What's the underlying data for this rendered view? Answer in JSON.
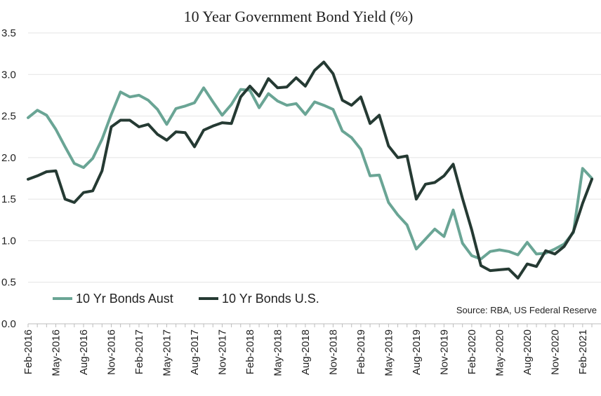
{
  "chart_data": {
    "type": "line",
    "title": "10 Year Government Bond Yield (%)",
    "xlabel": "",
    "ylabel": "",
    "ylim": [
      0,
      3.5
    ],
    "y_ticks": [
      "0.0",
      "0.5",
      "1.0",
      "1.5",
      "2.0",
      "2.5",
      "3.0",
      "3.5"
    ],
    "x_tick_labels": [
      "Feb-2016",
      "May-2016",
      "Aug-2016",
      "Nov-2016",
      "Feb-2017",
      "May-2017",
      "Aug-2017",
      "Nov-2017",
      "Feb-2018",
      "May-2018",
      "Aug-2018",
      "Nov-2018",
      "Feb-2019",
      "May-2019",
      "Aug-2019",
      "Nov-2019",
      "Feb-2020",
      "May-2020",
      "Aug-2020",
      "Nov-2020",
      "Feb-2021"
    ],
    "x": [
      "Feb-2016",
      "Mar-2016",
      "Apr-2016",
      "May-2016",
      "Jun-2016",
      "Jul-2016",
      "Aug-2016",
      "Sep-2016",
      "Oct-2016",
      "Nov-2016",
      "Dec-2016",
      "Jan-2017",
      "Feb-2017",
      "Mar-2017",
      "Apr-2017",
      "May-2017",
      "Jun-2017",
      "Jul-2017",
      "Aug-2017",
      "Sep-2017",
      "Oct-2017",
      "Nov-2017",
      "Dec-2017",
      "Jan-2018",
      "Feb-2018",
      "Mar-2018",
      "Apr-2018",
      "May-2018",
      "Jun-2018",
      "Jul-2018",
      "Aug-2018",
      "Sep-2018",
      "Oct-2018",
      "Nov-2018",
      "Dec-2018",
      "Jan-2019",
      "Feb-2019",
      "Mar-2019",
      "Apr-2019",
      "May-2019",
      "Jun-2019",
      "Jul-2019",
      "Aug-2019",
      "Sep-2019",
      "Oct-2019",
      "Nov-2019",
      "Dec-2019",
      "Jan-2020",
      "Feb-2020",
      "Mar-2020",
      "Apr-2020",
      "May-2020",
      "Jun-2020",
      "Jul-2020",
      "Aug-2020",
      "Sep-2020",
      "Oct-2020",
      "Nov-2020",
      "Dec-2020",
      "Jan-2021",
      "Feb-2021",
      "Mar-2021"
    ],
    "series": [
      {
        "name": "10 Yr Bonds Aust",
        "color": "#6aa595",
        "values": [
          2.48,
          2.57,
          2.51,
          2.34,
          2.13,
          1.93,
          1.88,
          1.99,
          2.22,
          2.52,
          2.79,
          2.73,
          2.75,
          2.69,
          2.58,
          2.4,
          2.59,
          2.62,
          2.66,
          2.84,
          2.67,
          2.51,
          2.64,
          2.82,
          2.81,
          2.6,
          2.77,
          2.68,
          2.63,
          2.65,
          2.52,
          2.67,
          2.63,
          2.58,
          2.32,
          2.24,
          2.1,
          1.78,
          1.79,
          1.46,
          1.31,
          1.19,
          0.9,
          1.02,
          1.14,
          1.05,
          1.37,
          0.97,
          0.82,
          0.78,
          0.87,
          0.89,
          0.87,
          0.83,
          0.98,
          0.84,
          0.85,
          0.9,
          0.96,
          1.1,
          1.87,
          1.75
        ]
      },
      {
        "name": "10 Yr Bonds U.S.",
        "color": "#253a33",
        "values": [
          1.74,
          1.78,
          1.83,
          1.84,
          1.5,
          1.46,
          1.58,
          1.6,
          1.84,
          2.37,
          2.45,
          2.45,
          2.37,
          2.4,
          2.28,
          2.21,
          2.31,
          2.3,
          2.13,
          2.33,
          2.38,
          2.42,
          2.41,
          2.73,
          2.86,
          2.74,
          2.95,
          2.84,
          2.85,
          2.96,
          2.86,
          3.05,
          3.15,
          3.01,
          2.69,
          2.63,
          2.73,
          2.41,
          2.51,
          2.14,
          2.0,
          2.02,
          1.5,
          1.68,
          1.7,
          1.78,
          1.92,
          1.51,
          1.13,
          0.7,
          0.64,
          0.65,
          0.66,
          0.55,
          0.72,
          0.69,
          0.88,
          0.84,
          0.93,
          1.11,
          1.45,
          1.74
        ]
      }
    ],
    "legend_position": "bottom-left",
    "grid": "horizontal",
    "source_note": "Source: RBA, US Federal Reserve"
  }
}
